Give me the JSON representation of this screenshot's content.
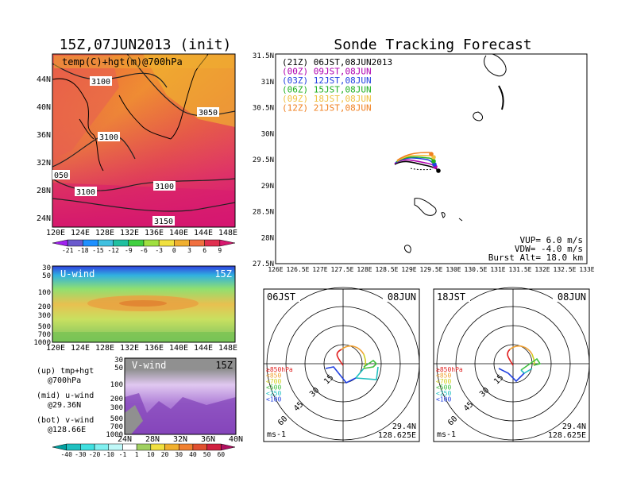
{
  "left_title": "15Z,07JUN2013 (init)",
  "right_title": "Sonde Tracking Forecast",
  "map_panel": {
    "label": "temp(C)+hgt(m)@700hPa",
    "y_ticks": [
      "44N",
      "40N",
      "36N",
      "32N",
      "28N",
      "24N"
    ],
    "x_ticks": [
      "120E",
      "124E",
      "128E",
      "132E",
      "136E",
      "140E",
      "144E",
      "148E"
    ],
    "contour_labels": [
      "3100",
      "3050",
      "3100",
      "050",
      "3100",
      "3100",
      "3150"
    ]
  },
  "temp_colorbar": {
    "labels": [
      "-21",
      "-18",
      "-15",
      "-12",
      "-9",
      "-6",
      "-3",
      "0",
      "3",
      "6",
      "9"
    ],
    "colors": [
      "#a020f0",
      "#6a5acd",
      "#1e90ff",
      "#40c0e0",
      "#20c0a0",
      "#40d040",
      "#a0e040",
      "#f0e040",
      "#f0b030",
      "#f07040",
      "#e03050",
      "#d81870"
    ]
  },
  "uwind_panel": {
    "label": "U-wind",
    "time": "15Z",
    "y_ticks": [
      "30",
      "50",
      "100",
      "200",
      "300",
      "500",
      "700",
      "1000"
    ],
    "x_ticks": [
      "120E",
      "124E",
      "128E",
      "132E",
      "136E",
      "140E",
      "144E",
      "148E"
    ]
  },
  "vwind_panel": {
    "label": "V-wind",
    "time": "15Z",
    "y_ticks": [
      "30",
      "50",
      "100",
      "200",
      "300",
      "500",
      "700",
      "1000"
    ],
    "x_ticks": [
      "24N",
      "28N",
      "32N",
      "36N",
      "40N"
    ]
  },
  "side_notes": {
    "up1": "(up) tmp+hgt",
    "up2": "@700hPa",
    "mid1": "(mid) u-wind",
    "mid2": "@29.36N",
    "bot1": "(bot) v-wind",
    "bot2": "@128.66E"
  },
  "wind_colorbar": {
    "labels": [
      "-40",
      "-30",
      "-20",
      "-10",
      "-1",
      "1",
      "10",
      "20",
      "30",
      "40",
      "50",
      "60"
    ],
    "colors": [
      "#00a0a0",
      "#20c0c0",
      "#40e0e0",
      "#80f0f0",
      "#c0f8f8",
      "#ffffff",
      "#a0d060",
      "#f0e040",
      "#f0b030",
      "#f08030",
      "#e05030",
      "#d02040",
      "#b01060"
    ]
  },
  "tracking": {
    "legend": [
      {
        "label": "(21Z) 06JST,08JUN2013",
        "color": "#000000"
      },
      {
        "label": "(00Z) 09JST,08JUN",
        "color": "#b000b0"
      },
      {
        "label": "(03Z) 12JST,08JUN",
        "color": "#2040e0"
      },
      {
        "label": "(06Z) 15JST,08JUN",
        "color": "#20b020"
      },
      {
        "label": "(09Z) 18JST,08JUN",
        "color": "#f0c040"
      },
      {
        "label": "(12Z) 21JST,08JUN",
        "color": "#f08020"
      }
    ],
    "y_ticks": [
      "31.5N",
      "31N",
      "30.5N",
      "30N",
      "29.5N",
      "29N",
      "28.5N",
      "28N",
      "27.5N"
    ],
    "x_ticks": [
      "126E",
      "126.5E",
      "127E",
      "127.5E",
      "128E",
      "128.5E",
      "129E",
      "129.5E",
      "130E",
      "130.5E",
      "131E",
      "131.5E",
      "132E",
      "132.5E",
      "133E"
    ],
    "vup": "VUP=  6.0  m/s",
    "vdw": "VDW= -4.0  m/s",
    "burst": "Burst Alt= 18.0  km"
  },
  "hodographs": [
    {
      "time": "06JST",
      "date": "08JUN",
      "lat": "29.4N",
      "lon": "128.625E",
      "unit": "ms-1"
    },
    {
      "time": "18JST",
      "date": "08JUN",
      "lat": "29.4N",
      "lon": "128.625E",
      "unit": "ms-1"
    }
  ],
  "hodo_levels": [
    {
      "label": "≥850hPa",
      "color": "#e02020"
    },
    {
      "label": "<850",
      "color": "#f0a030"
    },
    {
      "label": "<700",
      "color": "#d0d020"
    },
    {
      "label": "<500",
      "color": "#40c040"
    },
    {
      "label": "<250",
      "color": "#20c0c0"
    },
    {
      "label": "<100",
      "color": "#2040e0"
    }
  ],
  "ring_labels": [
    "15",
    "30",
    "45",
    "60"
  ]
}
